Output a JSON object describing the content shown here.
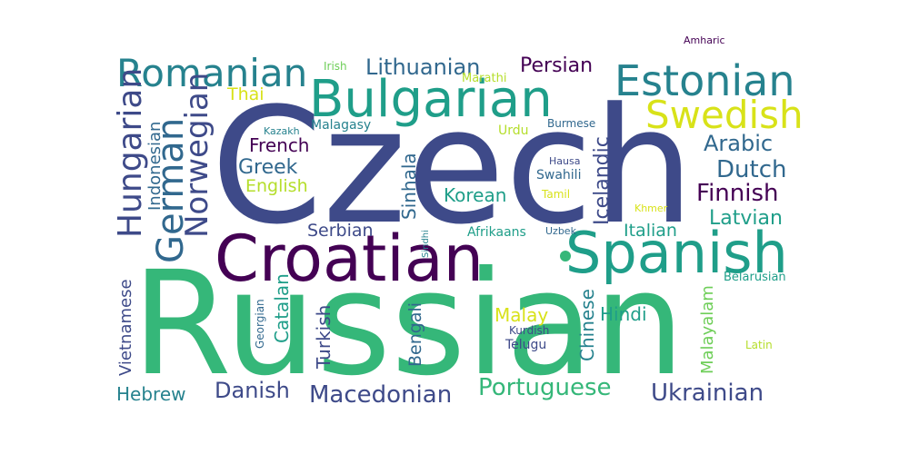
{
  "words": {
    "russian": "Russian",
    "czech": "Czech",
    "croatian": "Croatian",
    "spanish": "Spanish",
    "bulgarian": "Bulgarian",
    "estonian": "Estonian",
    "romanian": "Romanian",
    "swedish": "Swedish",
    "german": "German",
    "hungarian": "Hungarian",
    "norwegian": "Norwegian",
    "indonesian": "Indonesian",
    "lithuanian": "Lithuanian",
    "persian": "Persian",
    "arabic": "Arabic",
    "dutch": "Dutch",
    "finnish": "Finnish",
    "latvian": "Latvian",
    "italian": "Italian",
    "greek": "Greek",
    "french": "French",
    "english": "English",
    "thai": "Thai",
    "korean": "Korean",
    "icelandic": "Icelandic",
    "sinhala": "Sinhala",
    "serbian": "Serbian",
    "portuguese": "Portuguese",
    "macedonian": "Macedonian",
    "danish": "Danish",
    "hebrew": "Hebrew",
    "ukrainian": "Ukrainian",
    "vietnamese": "Vietnamese",
    "turkish": "Turkish",
    "catalan": "Catalan",
    "bengali": "Bengali",
    "chinese": "Chinese",
    "hindi": "Hindi",
    "malay": "Malay",
    "malayalam": "Malayalam",
    "telugu": "Telugu",
    "kurdish": "Kurdish",
    "afrikaans": "Afrikaans",
    "uzbek": "Uzbek",
    "sindhi": "Sindhi",
    "georgian": "Georgian",
    "belarusian": "Belarusian",
    "latin": "Latin",
    "urdu": "Urdu",
    "swahili": "Swahili",
    "tamil": "Tamil",
    "hausa": "Hausa",
    "khmer": "Khmer",
    "burmese": "Burmese",
    "malagasy": "Malagasy",
    "kazakh": "Kazakh",
    "marathi": "Marathi",
    "irish": "Irish",
    "amharic": "Amharic"
  },
  "colors": {
    "dark_purple": "#440154",
    "indigo": "#3e4a89",
    "blue": "#31688e",
    "teal": "#26828e",
    "green_teal": "#1f9e89",
    "green": "#35b779",
    "bright_green": "#6ece58",
    "lime": "#b5de2b",
    "yellow": "#d8e219"
  }
}
